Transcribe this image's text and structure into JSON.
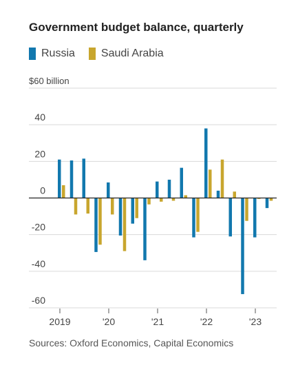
{
  "title": "Government budget balance, quarterly",
  "source": "Sources: Oxford Economics, Capital Economics",
  "colors": {
    "russia": "#1278ae",
    "saudi": "#c8a62e"
  },
  "chart_data": {
    "type": "bar",
    "title": "Government budget balance, quarterly",
    "unit": "$60 billion",
    "ylim": [
      -60,
      60
    ],
    "yticks": [
      60,
      40,
      20,
      0,
      -20,
      -40,
      -60
    ],
    "ytick_labels": [
      "$60 billion",
      "40",
      "20",
      "0",
      "-20",
      "-40",
      "-60"
    ],
    "xtick_labels": [
      "2019",
      "'20",
      "'21",
      "'22",
      "'23"
    ],
    "legend": [
      "Russia",
      "Saudi Arabia"
    ],
    "legend_position": "top-left",
    "grid": true,
    "categories": [
      "Q1 2019",
      "Q2 2019",
      "Q3 2019",
      "Q4 2019",
      "Q1 2020",
      "Q2 2020",
      "Q3 2020",
      "Q4 2020",
      "Q1 2021",
      "Q2 2021",
      "Q3 2021",
      "Q4 2021",
      "Q1 2022",
      "Q2 2022",
      "Q3 2022",
      "Q4 2022",
      "Q1 2023",
      "Q2 2023"
    ],
    "series": [
      {
        "name": "Russia",
        "values": [
          21,
          20.5,
          21.5,
          -29.5,
          8.5,
          -20.5,
          -14,
          -34,
          9,
          10,
          16.5,
          -21.5,
          38,
          4,
          -21,
          -52.5,
          -21.5,
          -5.5
        ]
      },
      {
        "name": "Saudi Arabia",
        "values": [
          7,
          -9,
          -8.5,
          -25.5,
          -9,
          -29,
          -11,
          -3.5,
          -2,
          -1.5,
          1.5,
          -18.5,
          15.5,
          21,
          3.5,
          -12.5,
          -0.5,
          -1.5
        ]
      }
    ]
  }
}
